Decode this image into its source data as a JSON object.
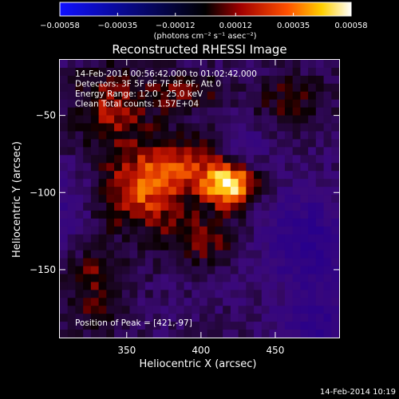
{
  "chart_data": {
    "type": "heatmap",
    "title": "Reconstructed RHESSI Image",
    "xlabel": "Heliocentric X (arcsec)",
    "ylabel": "Heliocentric Y (arcsec)",
    "xlim": [
      305,
      493
    ],
    "ylim": [
      -194,
      -14
    ],
    "x_ticks": [
      350,
      400,
      450
    ],
    "x_tick_labels": [
      "350",
      "400",
      "450"
    ],
    "y_ticks": [
      -50,
      -100,
      -150
    ],
    "y_tick_labels": [
      "−50",
      "−100",
      "−150"
    ],
    "colorbar": {
      "range": [
        -0.00058,
        0.00058
      ],
      "ticks": [
        -0.00058,
        -0.00035,
        -0.00012,
        0.00012,
        0.00035,
        0.00058
      ],
      "tick_labels": [
        "−0.00058",
        "−0.00035",
        "−0.00012",
        "0.00012",
        "0.00035",
        "0.00058"
      ],
      "units": "(photons cm⁻² s⁻¹ asec⁻²)",
      "colormap": [
        "#1010ff",
        "#000000",
        "#a00000",
        "#ff5000",
        "#ffd000",
        "#ffffff"
      ]
    },
    "info_lines": [
      "14-Feb-2014 00:56:42.000 to 01:02:42.000",
      "Detectors: 3F 5F 6F 7F 8F 9F, Att 0",
      "Energy Range: 12.0 - 25.0 keV",
      "Clean     Total counts: 1.57E+04"
    ],
    "peak_label": "Position of Peak = [421,-97]",
    "peak": [
      421,
      -97
    ],
    "timestamp": "14-Feb-2014 10:19"
  }
}
